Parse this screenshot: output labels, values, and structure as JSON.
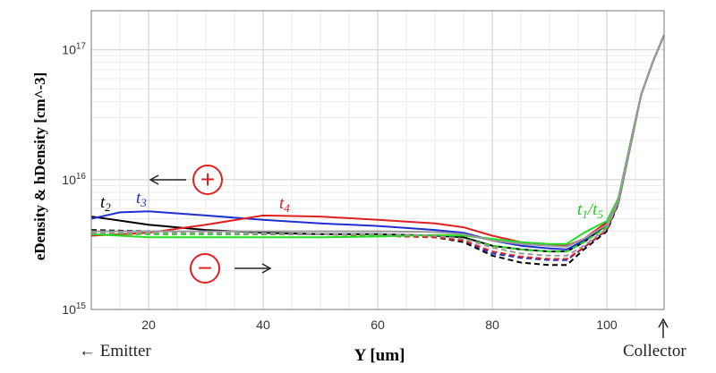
{
  "chart_data": {
    "type": "line",
    "title": "",
    "xlabel": "Y [um]",
    "ylabel": "eDensity & hDensity [cm^-3]",
    "xlim": [
      10,
      110
    ],
    "ylim": [
      1000000000000000.0,
      2e+17
    ],
    "yscale": "log",
    "grid": true,
    "xticks": [
      20,
      40,
      60,
      80,
      100
    ],
    "yticks": [
      {
        "value": 1000000000000000.0,
        "base": "10",
        "exp": "15"
      },
      {
        "value": 1e+16,
        "base": "10",
        "exp": "16"
      },
      {
        "value": 1e+17,
        "base": "10",
        "exp": "17"
      }
    ],
    "annotations": {
      "emitter": "← Emitter",
      "collector": "Collector",
      "t2": {
        "base": "t",
        "sub": "2"
      },
      "t3": {
        "base": "t",
        "sub": "3"
      },
      "t4": {
        "base": "t",
        "sub": "4"
      },
      "t1t5": {
        "parts": [
          {
            "base": "t",
            "sub": "1"
          },
          {
            "sep": "/"
          },
          {
            "base": "t",
            "sub": "5"
          }
        ]
      },
      "plus_symbol": "+",
      "minus_symbol": "−"
    },
    "series": [
      {
        "color": "#000000",
        "dash": false,
        "x": [
          10,
          20,
          30,
          40,
          50,
          60,
          70,
          75,
          80,
          85,
          90,
          93,
          96,
          100,
          102,
          104,
          106,
          108,
          110
        ],
        "y": [
          5200000000000000.0,
          4500000000000000.0,
          4100000000000000.0,
          3900000000000000.0,
          3800000000000000.0,
          3800000000000000.0,
          3700000000000000.0,
          3600000000000000.0,
          3100000000000000.0,
          2900000000000000.0,
          2800000000000000.0,
          2800000000000000.0,
          3300000000000000.0,
          4500000000000000.0,
          7000000000000000.0,
          1.8e+16,
          4.5e+16,
          8e+16,
          1.3e+17
        ]
      },
      {
        "color": "#000000",
        "dash": true,
        "x": [
          10,
          20,
          30,
          40,
          50,
          60,
          70,
          75,
          80,
          85,
          90,
          93,
          96,
          100,
          102,
          104,
          106,
          108,
          110
        ],
        "y": [
          4100000000000000.0,
          4000000000000000.0,
          3900000000000000.0,
          3800000000000000.0,
          3800000000000000.0,
          3700000000000000.0,
          3600000000000000.0,
          3300000000000000.0,
          2600000000000000.0,
          2300000000000000.0,
          2200000000000000.0,
          2200000000000000.0,
          2900000000000000.0,
          4000000000000000.0,
          6500000000000000.0,
          1.7e+16,
          4.5e+16,
          8e+16,
          1.3e+17
        ]
      },
      {
        "color": "#1f2fd0",
        "dash": false,
        "x": [
          10,
          15,
          20,
          30,
          40,
          50,
          60,
          70,
          75,
          80,
          85,
          90,
          93,
          96,
          100,
          102,
          104,
          106,
          108,
          110
        ],
        "y": [
          5000000000000000.0,
          5600000000000000.0,
          5700000000000000.0,
          5300000000000000.0,
          4900000000000000.0,
          4600000000000000.0,
          4400000000000000.0,
          4100000000000000.0,
          3900000000000000.0,
          3400000000000000.0,
          3100000000000000.0,
          2950000000000000.0,
          2900000000000000.0,
          3400000000000000.0,
          4600000000000000.0,
          7000000000000000.0,
          1.8e+16,
          4.5e+16,
          8e+16,
          1.3e+17
        ]
      },
      {
        "color": "#1f2fd0",
        "dash": true,
        "x": [
          10,
          20,
          30,
          40,
          50,
          60,
          70,
          75,
          80,
          85,
          90,
          93,
          96,
          100,
          102,
          104,
          106,
          108,
          110
        ],
        "y": [
          3900000000000000.0,
          3900000000000000.0,
          3800000000000000.0,
          3800000000000000.0,
          3800000000000000.0,
          3800000000000000.0,
          3700000000000000.0,
          3400000000000000.0,
          2700000000000000.0,
          2500000000000000.0,
          2400000000000000.0,
          2400000000000000.0,
          3000000000000000.0,
          4100000000000000.0,
          6600000000000000.0,
          1.7e+16,
          4.5e+16,
          8e+16,
          1.3e+17
        ]
      },
      {
        "color": "#e02020",
        "dash": false,
        "x": [
          10,
          20,
          30,
          40,
          50,
          60,
          70,
          75,
          80,
          85,
          90,
          93,
          96,
          100,
          102,
          104,
          106,
          108,
          110
        ],
        "y": [
          3700000000000000.0,
          3900000000000000.0,
          4500000000000000.0,
          5300000000000000.0,
          5200000000000000.0,
          4900000000000000.0,
          4600000000000000.0,
          4300000000000000.0,
          3700000000000000.0,
          3300000000000000.0,
          3150000000000000.0,
          3100000000000000.0,
          3500000000000000.0,
          4700000000000000.0,
          7000000000000000.0,
          1.8e+16,
          4.5e+16,
          8e+16,
          1.3e+17
        ]
      },
      {
        "color": "#e02020",
        "dash": true,
        "x": [
          10,
          20,
          30,
          40,
          50,
          60,
          70,
          75,
          80,
          85,
          90,
          93,
          96,
          100,
          102,
          104,
          106,
          108,
          110
        ],
        "y": [
          3800000000000000.0,
          3800000000000000.0,
          3800000000000000.0,
          3800000000000000.0,
          3800000000000000.0,
          3700000000000000.0,
          3600000000000000.0,
          3400000000000000.0,
          2800000000000000.0,
          2550000000000000.0,
          2450000000000000.0,
          2450000000000000.0,
          3000000000000000.0,
          4100000000000000.0,
          6600000000000000.0,
          1.7e+16,
          4.5e+16,
          8e+16,
          1.3e+17
        ]
      },
      {
        "color": "#22dd22",
        "dash": false,
        "x": [
          10,
          20,
          30,
          40,
          50,
          60,
          70,
          75,
          80,
          85,
          90,
          93,
          96,
          100,
          102,
          104,
          106,
          108,
          110
        ],
        "y": [
          3800000000000000.0,
          3600000000000000.0,
          3600000000000000.0,
          3600000000000000.0,
          3600000000000000.0,
          3650000000000000.0,
          3750000000000000.0,
          3700000000000000.0,
          3500000000000000.0,
          3300000000000000.0,
          3200000000000000.0,
          3200000000000000.0,
          3900000000000000.0,
          4800000000000000.0,
          7200000000000000.0,
          1.8e+16,
          4.5e+16,
          8e+16,
          1.3e+17
        ]
      },
      {
        "color": "#22dd22",
        "dash": true,
        "x": [
          10,
          20,
          30,
          40,
          50,
          60,
          70,
          75,
          80,
          85,
          90,
          93,
          96,
          100,
          102,
          104,
          106,
          108,
          110
        ],
        "y": [
          3900000000000000.0,
          3800000000000000.0,
          3800000000000000.0,
          3800000000000000.0,
          3800000000000000.0,
          3750000000000000.0,
          3700000000000000.0,
          3500000000000000.0,
          3100000000000000.0,
          2900000000000000.0,
          2800000000000000.0,
          2800000000000000.0,
          3300000000000000.0,
          4300000000000000.0,
          6800000000000000.0,
          1.7e+16,
          4.5e+16,
          8e+16,
          1.3e+17
        ]
      },
      {
        "color": "#999999",
        "dash": false,
        "x": [
          10,
          20,
          30,
          40,
          50,
          60,
          70,
          75,
          80,
          85,
          90,
          93,
          96,
          100,
          102,
          104,
          106,
          108,
          110
        ],
        "y": [
          4000000000000000.0,
          4000000000000000.0,
          4000000000000000.0,
          4000000000000000.0,
          4000000000000000.0,
          4000000000000000.0,
          3950000000000000.0,
          3800000000000000.0,
          3400000000000000.0,
          3200000000000000.0,
          3100000000000000.0,
          3050000000000000.0,
          3500000000000000.0,
          4500000000000000.0,
          7000000000000000.0,
          1.75e+16,
          4.5e+16,
          8e+16,
          1.3e+17
        ]
      },
      {
        "color": "#999999",
        "dash": true,
        "x": [
          10,
          20,
          30,
          40,
          50,
          60,
          70,
          75,
          80,
          85,
          90,
          93,
          96,
          100,
          102,
          104,
          106,
          108,
          110
        ],
        "y": [
          3900000000000000.0,
          3900000000000000.0,
          3900000000000000.0,
          3850000000000000.0,
          3800000000000000.0,
          3800000000000000.0,
          3700000000000000.0,
          3500000000000000.0,
          3000000000000000.0,
          2700000000000000.0,
          2600000000000000.0,
          2600000000000000.0,
          3100000000000000.0,
          4200000000000000.0,
          6700000000000000.0,
          1.7e+16,
          4.5e+16,
          8e+16,
          1.3e+17
        ]
      }
    ],
    "label_colors": {
      "t2": "#000000",
      "t3": "#1f2fd0",
      "t4": "#e02020",
      "t1t5": "#22cc22",
      "symbols": "#e02020"
    }
  }
}
